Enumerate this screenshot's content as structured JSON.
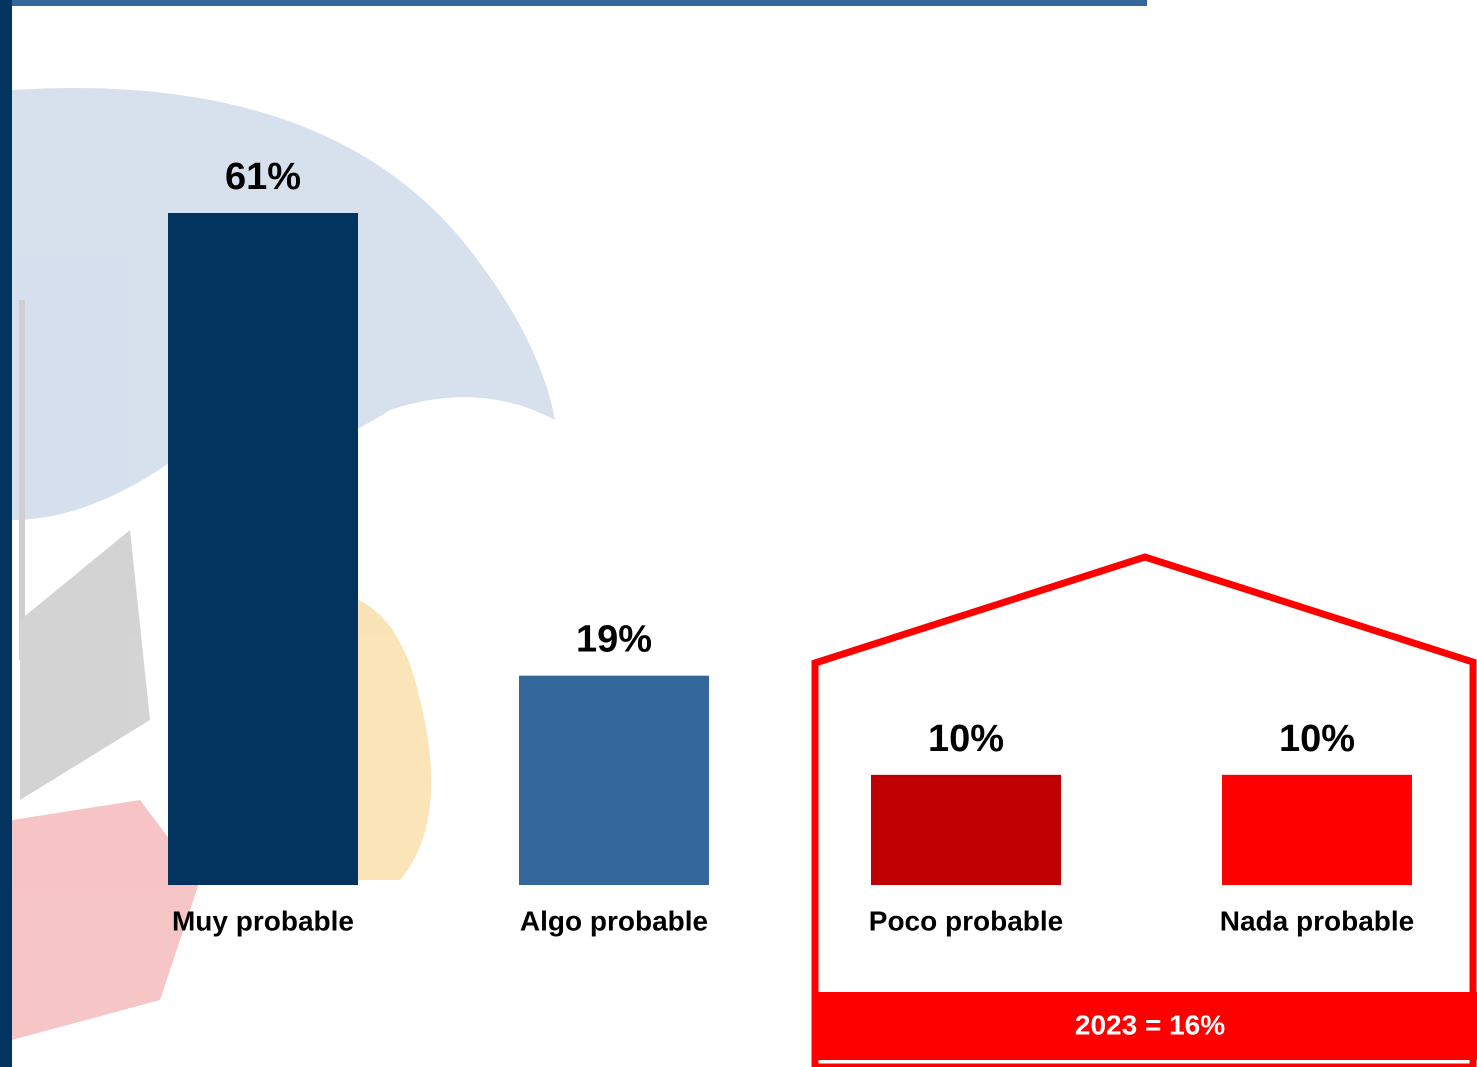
{
  "chart_data": {
    "type": "bar",
    "categories": [
      "Muy probable",
      "Algo probable",
      "Poco probable",
      "Nada probable"
    ],
    "values": [
      61,
      19,
      10,
      10
    ],
    "value_labels": [
      "61%",
      "19%",
      "10%",
      "10%"
    ],
    "colors": [
      "#03335f",
      "#336699",
      "#c00000",
      "#ff0000"
    ],
    "annotation": "2023 = 16%"
  }
}
